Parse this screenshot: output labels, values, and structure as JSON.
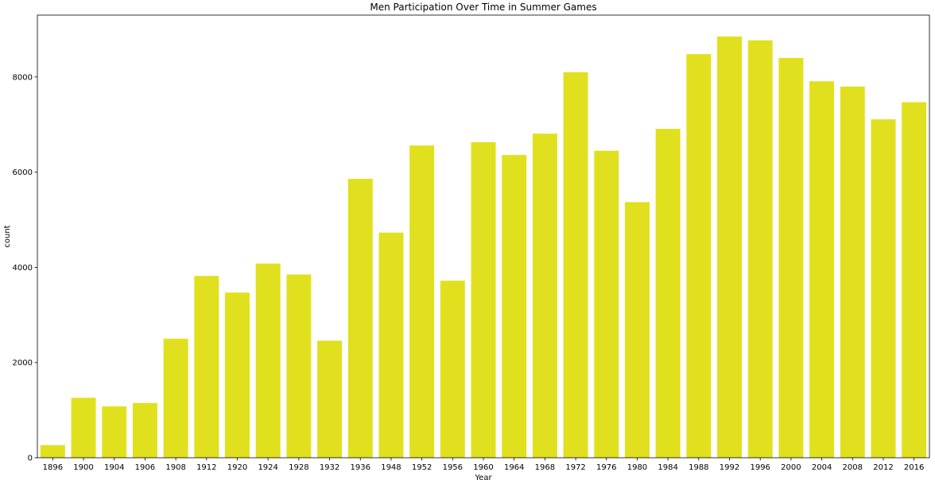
{
  "chart_data": {
    "type": "bar",
    "title": "Men Participation Over Time in Summer Games",
    "xlabel": "Year",
    "ylabel": "count",
    "ylim": [
      0,
      9300
    ],
    "yticks": [
      0,
      2000,
      4000,
      6000,
      8000
    ],
    "grid": false,
    "bar_color": "#e1e01e",
    "categories": [
      "1896",
      "1900",
      "1904",
      "1906",
      "1908",
      "1912",
      "1920",
      "1924",
      "1928",
      "1932",
      "1936",
      "1948",
      "1952",
      "1956",
      "1960",
      "1964",
      "1968",
      "1972",
      "1976",
      "1980",
      "1984",
      "1988",
      "1992",
      "1996",
      "2000",
      "2004",
      "2008",
      "2012",
      "2016"
    ],
    "values": [
      265,
      1260,
      1080,
      1150,
      2500,
      3820,
      3470,
      4080,
      3850,
      2460,
      5860,
      4730,
      6560,
      3720,
      6630,
      6360,
      6810,
      8100,
      6450,
      5370,
      6910,
      8480,
      8850,
      8770,
      8400,
      7910,
      7800,
      7110,
      7470
    ]
  }
}
